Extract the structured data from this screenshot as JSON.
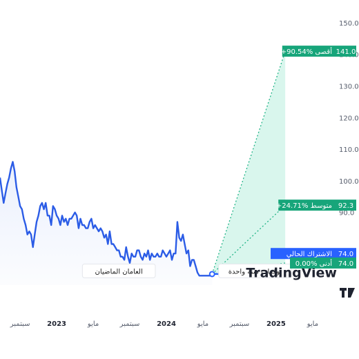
{
  "colors": {
    "price_line": "#2b5ce6",
    "price_fill": "#e8eefc",
    "forecast_zone": "#d2f5ea",
    "forecast_line": "#20b386",
    "tag_green": "#17a57a",
    "tag_blue": "#2962ff",
    "axis_text": "#555c6b"
  },
  "watermark": "TradingView",
  "watermark_icon": "tradingview-logo-icon",
  "chart_data": {
    "type": "line",
    "y_axis": {
      "ticks": [
        150,
        140,
        130,
        120,
        110,
        100,
        90
      ],
      "ylim": [
        67,
        155
      ],
      "position": "right"
    },
    "x_axis": {
      "ticks": [
        {
          "label": "سبتمبر",
          "t": 0.5,
          "bold": false
        },
        {
          "label": "2023",
          "t": 4.5,
          "bold": true
        },
        {
          "label": "مايو",
          "t": 8.5,
          "bold": false
        },
        {
          "label": "سبتمبر",
          "t": 12.5,
          "bold": false
        },
        {
          "label": "2024",
          "t": 16.5,
          "bold": true
        },
        {
          "label": "مايو",
          "t": 20.5,
          "bold": false
        },
        {
          "label": "سبتمبر",
          "t": 24.5,
          "bold": false
        },
        {
          "label": "2025",
          "t": 28.5,
          "bold": true
        },
        {
          "label": "مايو",
          "t": 32.5,
          "bold": false
        }
      ],
      "tlim": [
        -1.7,
        35
      ]
    },
    "series": [
      {
        "t": [
          -1.7,
          -1.5,
          -1.3,
          -1.1,
          -0.9,
          -0.7,
          -0.5,
          -0.3,
          -0.1,
          0.1,
          0.3,
          0.5,
          0.7,
          0.9,
          1.1,
          1.3,
          1.5,
          1.7,
          1.9,
          2.1,
          2.3,
          2.5,
          2.7,
          2.9,
          3.1,
          3.3,
          3.5,
          3.7,
          3.9,
          4.1,
          4.3,
          4.5,
          4.7,
          4.9,
          5.1,
          5.3,
          5.5,
          5.7,
          5.9,
          6.1,
          6.3,
          6.5,
          6.7,
          6.9,
          7.1,
          7.3,
          7.5,
          7.7,
          7.9,
          8.1,
          8.3,
          8.5,
          8.7,
          8.9,
          9.1,
          9.3,
          9.5,
          9.7,
          9.9,
          10.1,
          10.3,
          10.5,
          10.7,
          10.9,
          11.1,
          11.3,
          11.5,
          11.7,
          11.9,
          12.1,
          12.3,
          12.5,
          12.7,
          12.9,
          13.1,
          13.3,
          13.5,
          13.7,
          13.9,
          14.1,
          14.3,
          14.5,
          14.7,
          14.9,
          15.1,
          15.3,
          15.5,
          15.7,
          15.9,
          16.1,
          16.3,
          16.5,
          16.7,
          16.9,
          17.1,
          17.3,
          17.5,
          17.7,
          17.9,
          18.1,
          18.3,
          18.5,
          18.7,
          18.9,
          19.1,
          19.3,
          19.5,
          19.7,
          19.9,
          20.1,
          20.3,
          20.5,
          20.7,
          20.9,
          21.1,
          21.3,
          21.5
        ],
        "values": [
          101,
          97,
          93,
          96,
          99,
          101,
          104,
          106,
          103,
          98,
          95,
          92,
          91,
          88,
          86,
          83,
          84,
          83,
          79,
          83,
          87,
          89,
          92,
          93,
          91,
          93,
          89,
          89,
          86,
          92,
          91,
          89,
          88,
          86,
          89,
          87,
          88,
          86,
          88,
          88,
          89,
          90,
          89,
          85,
          88,
          86,
          86,
          85,
          85,
          87,
          88,
          85,
          86,
          85,
          84,
          85,
          84,
          82,
          83,
          80,
          84,
          80,
          80,
          79,
          78,
          78,
          76,
          76,
          75,
          79,
          76,
          74,
          77,
          76,
          76,
          78,
          78,
          76,
          75,
          77,
          76,
          78,
          75,
          77,
          76,
          76,
          77,
          76,
          76,
          78,
          77,
          76,
          77,
          78,
          75,
          77,
          77,
          87,
          82,
          81,
          83,
          80,
          77,
          78,
          73,
          75,
          75,
          73,
          71,
          70,
          70,
          70,
          70,
          70,
          70,
          70,
          70
        ]
      }
    ],
    "forecast": {
      "start": {
        "t": 21.5,
        "value": 70.5
      },
      "end_t": 29.5,
      "targets": [
        {
          "name": "أقصى",
          "change": "+90.54%",
          "value": "141.0",
          "y": 141.0,
          "color": "#17a57a"
        },
        {
          "name": "متوسط",
          "change": "+24.71%",
          "value": "92.3",
          "y": 92.3,
          "color": "#17a57a"
        },
        {
          "name": "أدنى",
          "change": "0.00%",
          "value": "74.0",
          "y": 74.0,
          "color": "#17a57a"
        }
      ],
      "current": {
        "name": "الاشتراك الحالي",
        "value": "74.0",
        "y": 77.0,
        "color": "#2962ff"
      }
    },
    "annotations": [
      {
        "text": "العامان الماضيان",
        "t": 11.3,
        "y": 71.5
      },
      {
        "text": "توقعات سنة واحدة",
        "t": 26.2,
        "y": 71.5
      }
    ]
  }
}
